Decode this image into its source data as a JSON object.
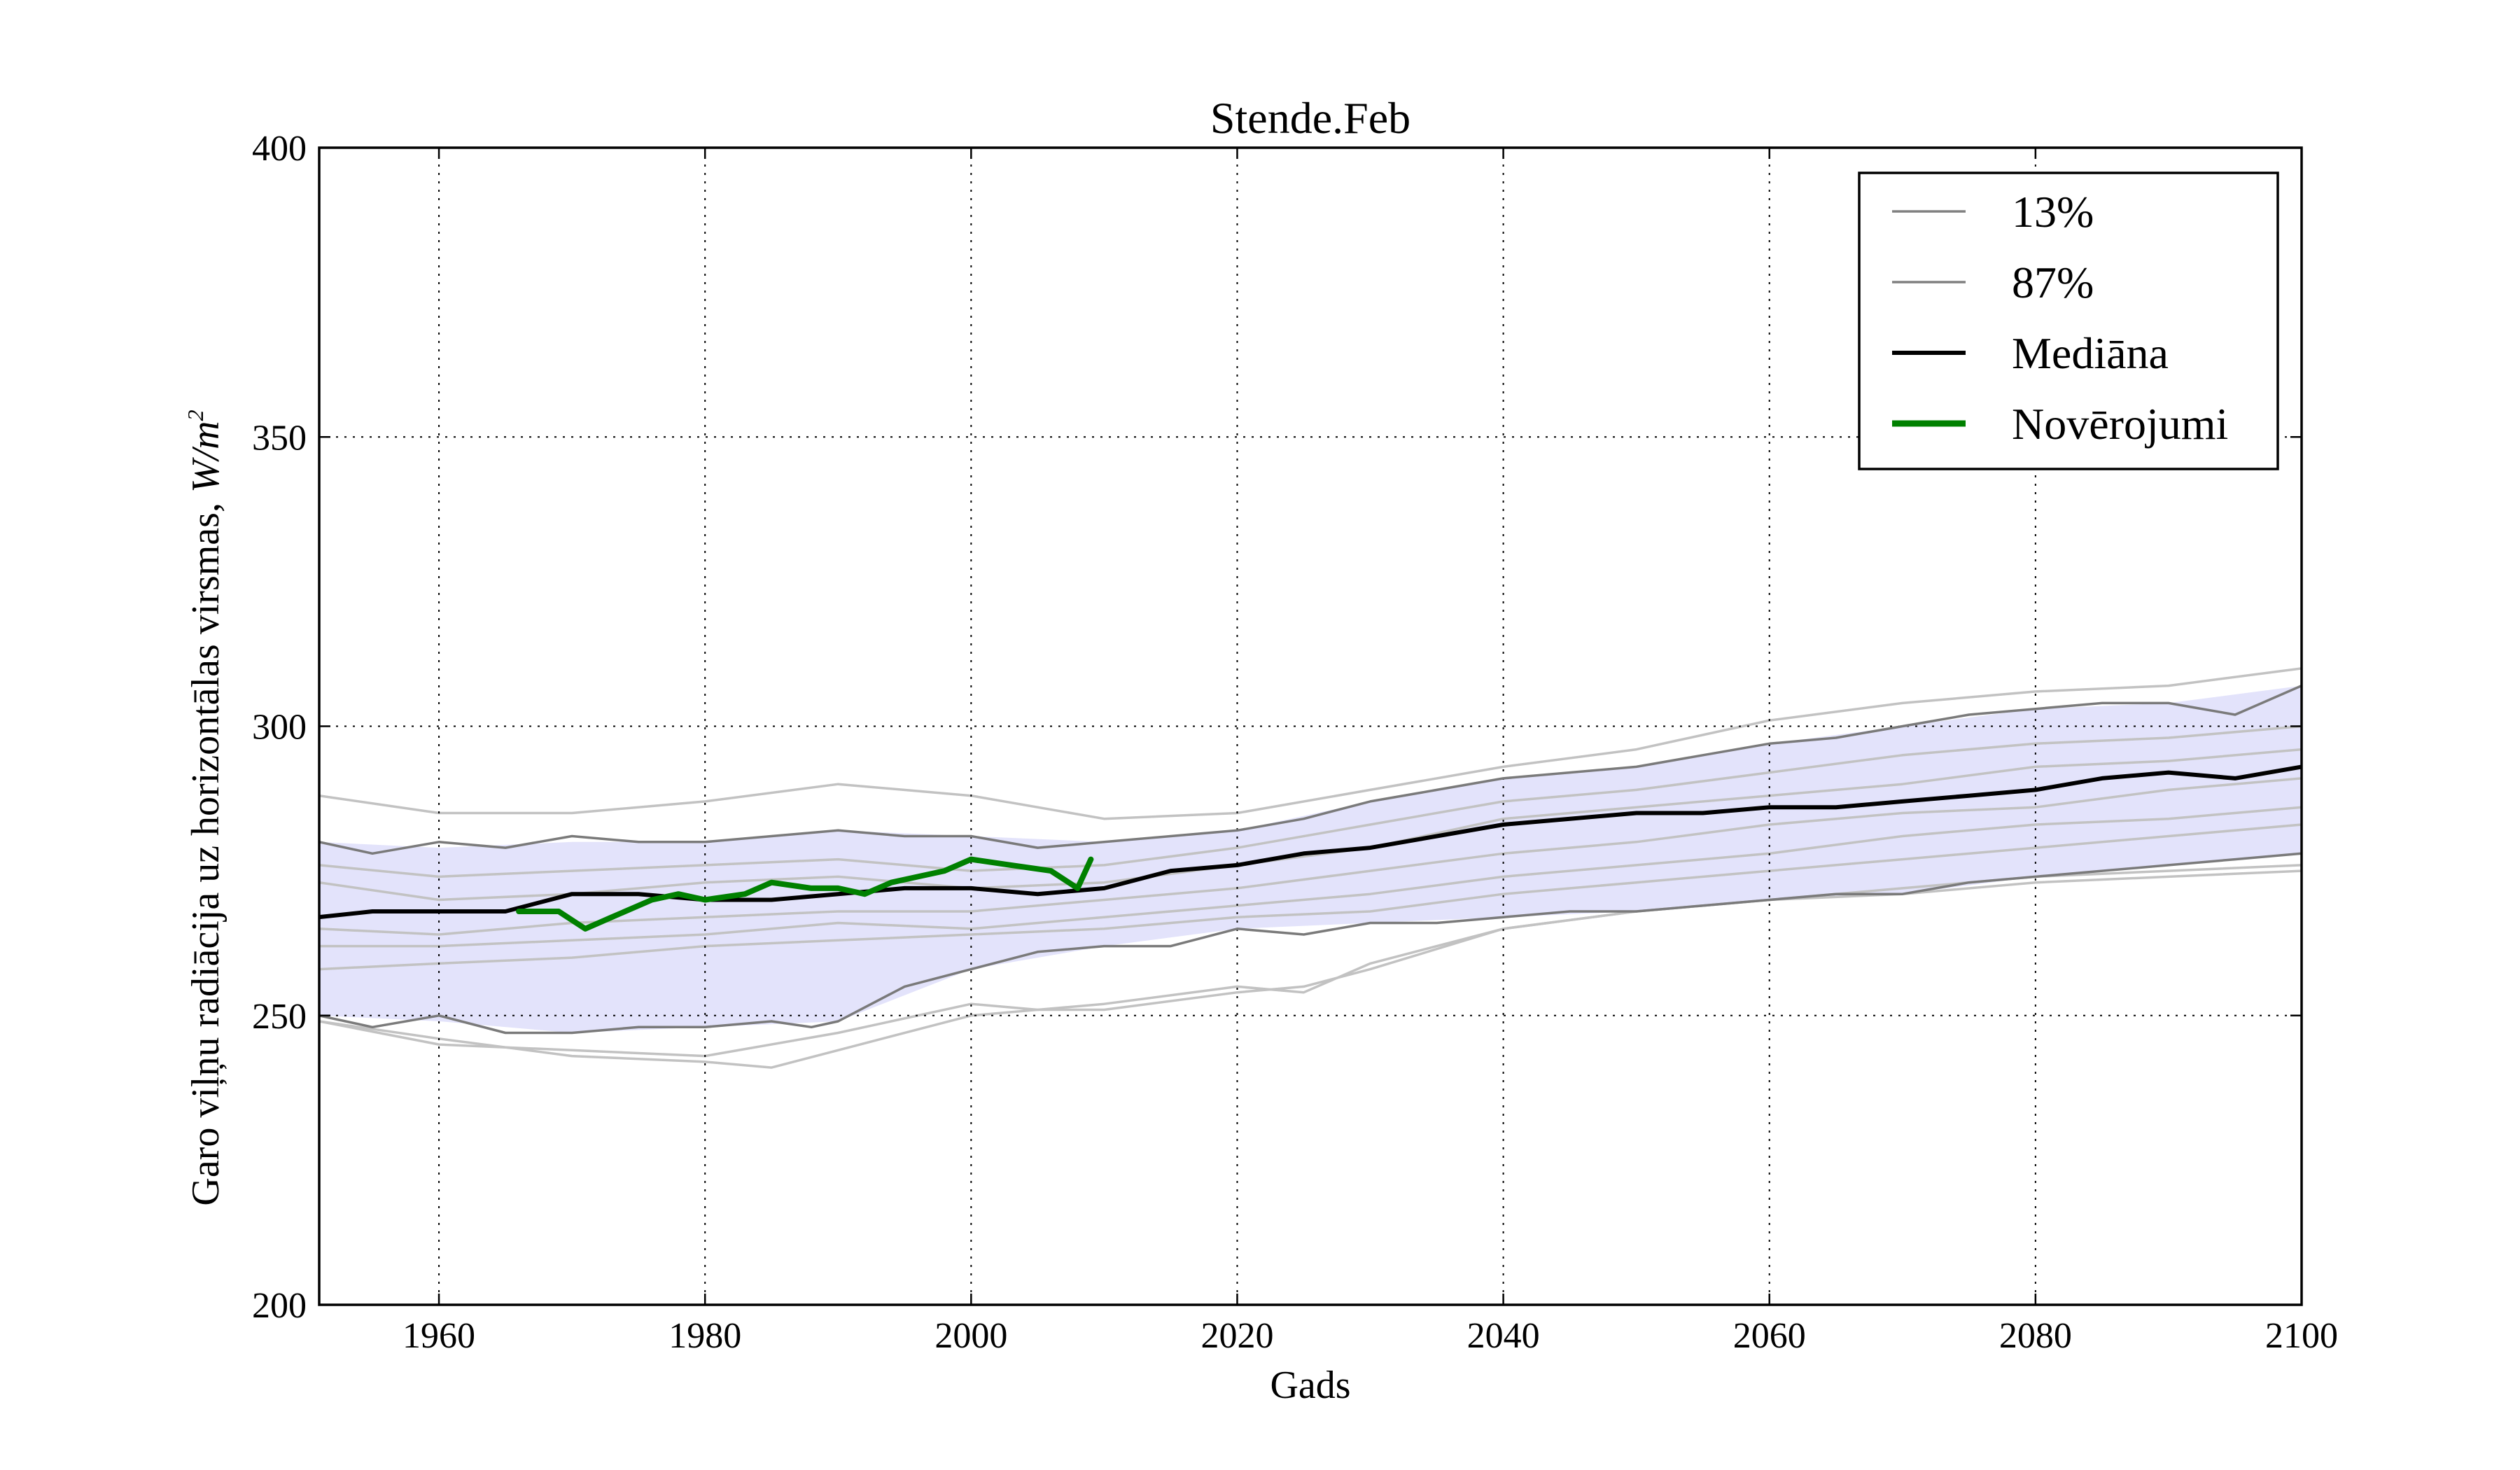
{
  "chart_data": {
    "type": "line",
    "title": "Stende.Feb",
    "xlabel": "Gads",
    "ylabel": "Garo viļņu radiācija uz horizontālas virsmas, ",
    "ylabel_unit": "W/m",
    "ylabel_unit_sup": "2",
    "xlim": [
      1951,
      2100
    ],
    "ylim": [
      200,
      400
    ],
    "x_ticks": [
      1960,
      1980,
      2000,
      2020,
      2040,
      2060,
      2080,
      2100
    ],
    "y_ticks": [
      200,
      250,
      300,
      350,
      400
    ],
    "grid": true,
    "legend_position": "top-right",
    "legend": [
      {
        "label": "13%",
        "color": "#808080",
        "style": "thin"
      },
      {
        "label": "87%",
        "color": "#808080",
        "style": "thin"
      },
      {
        "label": "Mediāna",
        "color": "#000000",
        "style": "thick"
      },
      {
        "label": "Novērojumi",
        "color": "#008000",
        "style": "thick"
      }
    ],
    "band": {
      "fill": "#e3e3fb",
      "x": [
        1951,
        1960,
        1970,
        1980,
        1990,
        2000,
        2010,
        2020,
        2030,
        2040,
        2050,
        2060,
        2070,
        2080,
        2090,
        2100
      ],
      "lower": [
        250,
        249,
        247,
        248,
        249,
        258,
        262,
        265,
        266,
        267,
        268,
        270,
        271,
        274,
        276,
        278
      ],
      "upper": [
        280,
        279,
        280,
        280,
        282,
        281,
        280,
        282,
        287,
        291,
        293,
        297,
        300,
        303,
        304,
        307
      ]
    },
    "series": [
      {
        "name": "13%",
        "color": "#7a7a7a",
        "width": 3.5,
        "x": [
          1951,
          1955,
          1960,
          1965,
          1970,
          1975,
          1980,
          1985,
          1988,
          1990,
          1995,
          2000,
          2005,
          2010,
          2015,
          2020,
          2025,
          2030,
          2035,
          2040,
          2045,
          2050,
          2055,
          2060,
          2065,
          2070,
          2075,
          2080,
          2085,
          2090,
          2095,
          2100
        ],
        "values": [
          250,
          248,
          250,
          247,
          247,
          248,
          248,
          249,
          248,
          249,
          255,
          258,
          261,
          262,
          262,
          265,
          264,
          266,
          266,
          267,
          268,
          268,
          269,
          270,
          271,
          271,
          273,
          274,
          275,
          276,
          277,
          278
        ]
      },
      {
        "name": "87%",
        "color": "#7a7a7a",
        "width": 3.5,
        "x": [
          1951,
          1955,
          1960,
          1965,
          1970,
          1975,
          1980,
          1985,
          1990,
          1995,
          2000,
          2005,
          2010,
          2015,
          2020,
          2025,
          2030,
          2035,
          2040,
          2045,
          2050,
          2055,
          2060,
          2065,
          2070,
          2075,
          2080,
          2085,
          2090,
          2095,
          2100
        ],
        "values": [
          280,
          278,
          280,
          279,
          281,
          280,
          280,
          281,
          282,
          281,
          281,
          279,
          280,
          281,
          282,
          284,
          287,
          289,
          291,
          292,
          293,
          295,
          297,
          298,
          300,
          302,
          303,
          304,
          304,
          302,
          307
        ]
      },
      {
        "name": "Mediāna",
        "color": "#000000",
        "width": 6,
        "x": [
          1951,
          1955,
          1960,
          1965,
          1970,
          1975,
          1980,
          1985,
          1990,
          1995,
          2000,
          2005,
          2010,
          2015,
          2020,
          2025,
          2030,
          2035,
          2040,
          2045,
          2050,
          2055,
          2060,
          2065,
          2070,
          2075,
          2080,
          2085,
          2090,
          2095,
          2100
        ],
        "values": [
          267,
          268,
          268,
          268,
          271,
          271,
          270,
          270,
          271,
          272,
          272,
          271,
          272,
          275,
          276,
          278,
          279,
          281,
          283,
          284,
          285,
          285,
          286,
          286,
          287,
          288,
          289,
          291,
          292,
          291,
          293
        ]
      },
      {
        "name": "Novērojumi",
        "color": "#008000",
        "width": 8,
        "x": [
          1966,
          1969,
          1971,
          1973,
          1976,
          1978,
          1980,
          1983,
          1985,
          1988,
          1990,
          1992,
          1994,
          1996,
          1998,
          2000,
          2003,
          2006,
          2008,
          2009
        ],
        "values": [
          268,
          268,
          265,
          267,
          270,
          271,
          270,
          271,
          273,
          272,
          272,
          271,
          273,
          274,
          275,
          277,
          276,
          275,
          272,
          277
        ]
      }
    ],
    "background_series": [
      {
        "x": [
          1951,
          1960,
          1970,
          1980,
          1990,
          2000,
          2010,
          2020,
          2030,
          2040,
          2050,
          2060,
          2070,
          2080,
          2090,
          2100
        ],
        "values": [
          288,
          285,
          285,
          287,
          290,
          288,
          284,
          285,
          289,
          293,
          296,
          301,
          304,
          306,
          307,
          310
        ]
      },
      {
        "x": [
          1951,
          1960,
          1970,
          1980,
          1990,
          2000,
          2010,
          2020,
          2030,
          2040,
          2050,
          2060,
          2070,
          2080,
          2090,
          2100
        ],
        "values": [
          276,
          274,
          275,
          276,
          277,
          275,
          276,
          279,
          283,
          287,
          289,
          292,
          295,
          297,
          298,
          300
        ]
      },
      {
        "x": [
          1951,
          1960,
          1970,
          1980,
          1990,
          2000,
          2010,
          2020,
          2030,
          2040,
          2050,
          2060,
          2070,
          2080,
          2090,
          2100
        ],
        "values": [
          273,
          270,
          271,
          273,
          274,
          272,
          273,
          276,
          279,
          284,
          286,
          288,
          290,
          293,
          294,
          296
        ]
      },
      {
        "x": [
          1951,
          1960,
          1970,
          1980,
          1990,
          2000,
          2010,
          2020,
          2030,
          2040,
          2050,
          2060,
          2070,
          2080,
          2090,
          2100
        ],
        "values": [
          265,
          264,
          266,
          267,
          268,
          268,
          270,
          272,
          275,
          278,
          280,
          283,
          285,
          286,
          289,
          291
        ]
      },
      {
        "x": [
          1951,
          1960,
          1970,
          1980,
          1990,
          2000,
          2010,
          2020,
          2030,
          2040,
          2050,
          2060,
          2070,
          2080,
          2090,
          2100
        ],
        "values": [
          262,
          262,
          263,
          264,
          266,
          265,
          267,
          269,
          271,
          274,
          276,
          278,
          281,
          283,
          284,
          286
        ]
      },
      {
        "x": [
          1951,
          1960,
          1970,
          1980,
          1990,
          2000,
          2010,
          2020,
          2030,
          2040,
          2050,
          2060,
          2070,
          2080,
          2090,
          2100
        ],
        "values": [
          258,
          259,
          260,
          262,
          263,
          264,
          265,
          267,
          268,
          271,
          273,
          275,
          277,
          279,
          281,
          283
        ]
      },
      {
        "x": [
          1951,
          1960,
          1970,
          1980,
          1990,
          2000,
          2005,
          2010,
          2020,
          2025,
          2030,
          2040,
          2050,
          2060,
          2070,
          2080,
          2090,
          2100
        ],
        "values": [
          249,
          245,
          244,
          243,
          247,
          252,
          251,
          251,
          254,
          255,
          258,
          265,
          268,
          270,
          271,
          273,
          274,
          275
        ]
      },
      {
        "x": [
          1951,
          1960,
          1970,
          1980,
          1985,
          1990,
          2000,
          2010,
          2020,
          2025,
          2030,
          2040,
          2050,
          2060,
          2070,
          2080,
          2090,
          2100
        ],
        "values": [
          249,
          246,
          243,
          242,
          241,
          244,
          250,
          252,
          255,
          254,
          259,
          265,
          268,
          270,
          272,
          274,
          275,
          276
        ]
      }
    ]
  }
}
